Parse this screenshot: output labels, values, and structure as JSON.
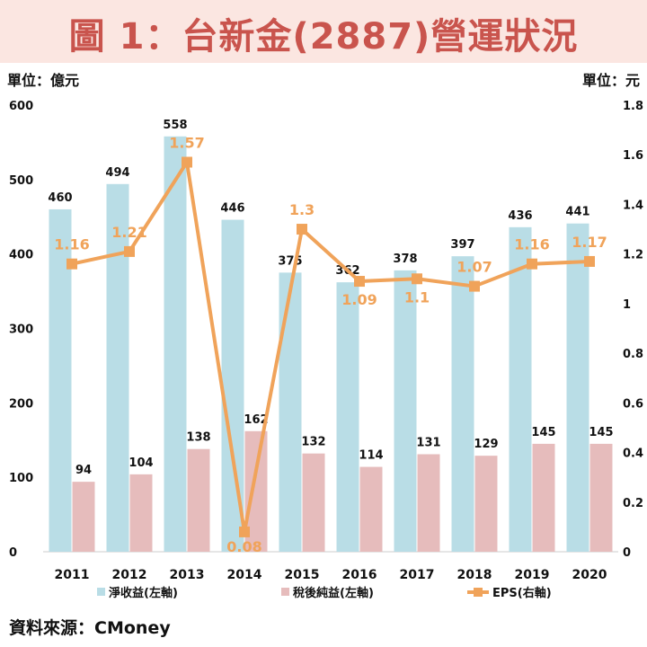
{
  "title": "圖 1：台新金(2887)營運狀況",
  "unit_left": "單位：億元",
  "unit_right": "單位：元",
  "source": "資料來源：CMoney",
  "colors": {
    "title_bg": "#fbe6e1",
    "title_fg": "#c9544d",
    "revenue": "#b9dde6",
    "profit": "#e6bcbc",
    "eps": "#f0a35a"
  },
  "chart_data": {
    "type": "bar",
    "categories": [
      "2011",
      "2012",
      "2013",
      "2014",
      "2015",
      "2016",
      "2017",
      "2018",
      "2019",
      "2020"
    ],
    "series": [
      {
        "name": "淨收益(左軸)",
        "type": "bar",
        "axis": "left",
        "values": [
          460,
          494,
          558,
          446,
          375,
          362,
          378,
          397,
          436,
          441
        ],
        "labels": [
          "460",
          "494",
          "558",
          "446",
          "375",
          "362",
          "378",
          "397",
          "436",
          "441"
        ]
      },
      {
        "name": "稅後純益(左軸)",
        "type": "bar",
        "axis": "left",
        "values": [
          94,
          104,
          138,
          162,
          132,
          114,
          131,
          129,
          145,
          145
        ],
        "labels": [
          "94",
          "104",
          "138",
          "162",
          "132",
          "114",
          "131",
          "129",
          "145",
          "145"
        ]
      },
      {
        "name": "EPS(右軸)",
        "type": "line",
        "axis": "right",
        "values": [
          1.16,
          1.21,
          1.57,
          0.08,
          1.3,
          1.09,
          1.1,
          1.07,
          1.16,
          1.17
        ],
        "labels": [
          "1.16",
          "1.21",
          "1.57",
          "0.08",
          "1.3",
          "1.09",
          "1.1",
          "1.07",
          "1.16",
          "1.17"
        ]
      }
    ],
    "ylim_left": [
      0,
      600
    ],
    "ylim_right": [
      0,
      1.8
    ],
    "left_ticks": [
      "0",
      "100",
      "200",
      "300",
      "400",
      "500",
      "600"
    ],
    "right_ticks": [
      "0",
      "0.2",
      "0.4",
      "0.6",
      "0.8",
      "1",
      "1.2",
      "1.4",
      "1.6",
      "1.8"
    ],
    "grid": false,
    "legend_position": "bottom"
  }
}
